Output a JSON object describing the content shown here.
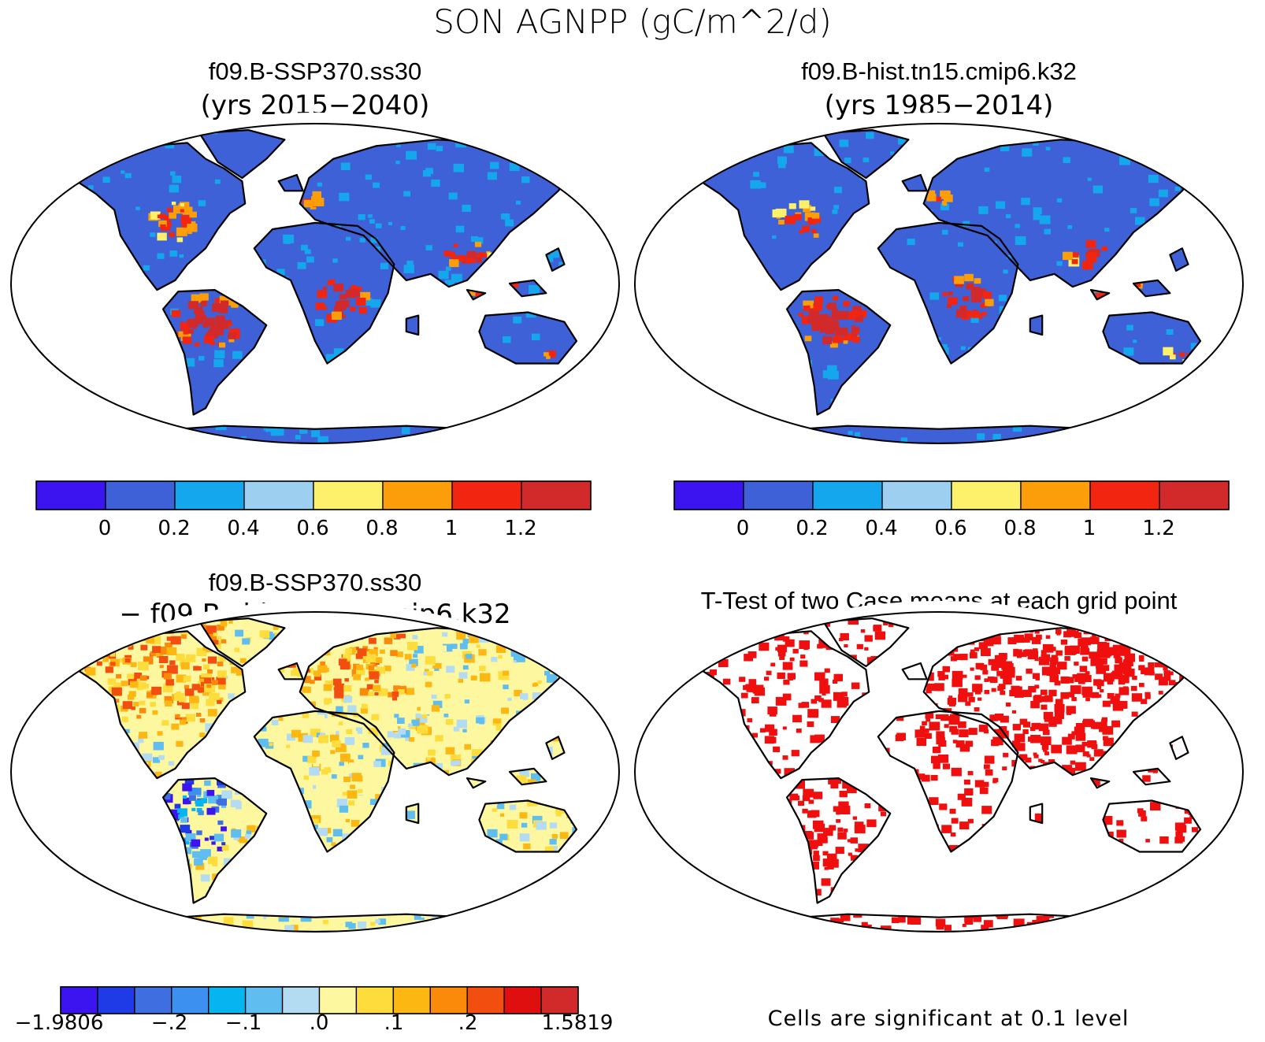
{
  "figure": {
    "title": "SON AGNPP (gC/m^2/d)"
  },
  "panels": [
    {
      "id": "ssp370",
      "title": "f09.B-SSP370.ss30",
      "subtitle": "(yrs 2015−2040)",
      "colorbar": {
        "colors": [
          "#3c14f0",
          "#3f61d8",
          "#15a7ee",
          "#9dcff0",
          "#fdf06a",
          "#fb9e0a",
          "#f22510",
          "#d22a2a"
        ],
        "labels": [
          "0",
          "0.2",
          "0.4",
          "0.6",
          "0.8",
          "1",
          "1.2"
        ]
      }
    },
    {
      "id": "hist",
      "title": "f09.B-hist.tn15.cmip6.k32",
      "subtitle": "(yrs 1985−2014)",
      "colorbar": {
        "colors": [
          "#3c14f0",
          "#3f61d8",
          "#15a7ee",
          "#9dcff0",
          "#fdf06a",
          "#fb9e0a",
          "#f22510",
          "#d22a2a"
        ],
        "labels": [
          "0",
          "0.2",
          "0.4",
          "0.6",
          "0.8",
          "1",
          "1.2"
        ]
      }
    },
    {
      "id": "diff",
      "title": "f09.B-SSP370.ss30",
      "subtitle": "− f09.B−hist.tn15.cmip6.k32",
      "colorbar": {
        "colors": [
          "#3c14f0",
          "#1f3be8",
          "#3f6ee0",
          "#3c90f0",
          "#06b4f0",
          "#5fbdf0",
          "#b3dcf2",
          "#fdf7a0",
          "#fddc3c",
          "#fdb713",
          "#fb8a0a",
          "#f24e10",
          "#e00f0f",
          "#d22a2a"
        ],
        "labels": [
          "−1.9806",
          "−.2",
          "−.1",
          ".0",
          ".1",
          ".2",
          "1.5819"
        ]
      }
    },
    {
      "id": "ttest",
      "title": "T-Test of two Case means at each grid point",
      "footnote": "Cells are significant at 0.1 level",
      "significant_color": "#f00f0f"
    }
  ]
}
